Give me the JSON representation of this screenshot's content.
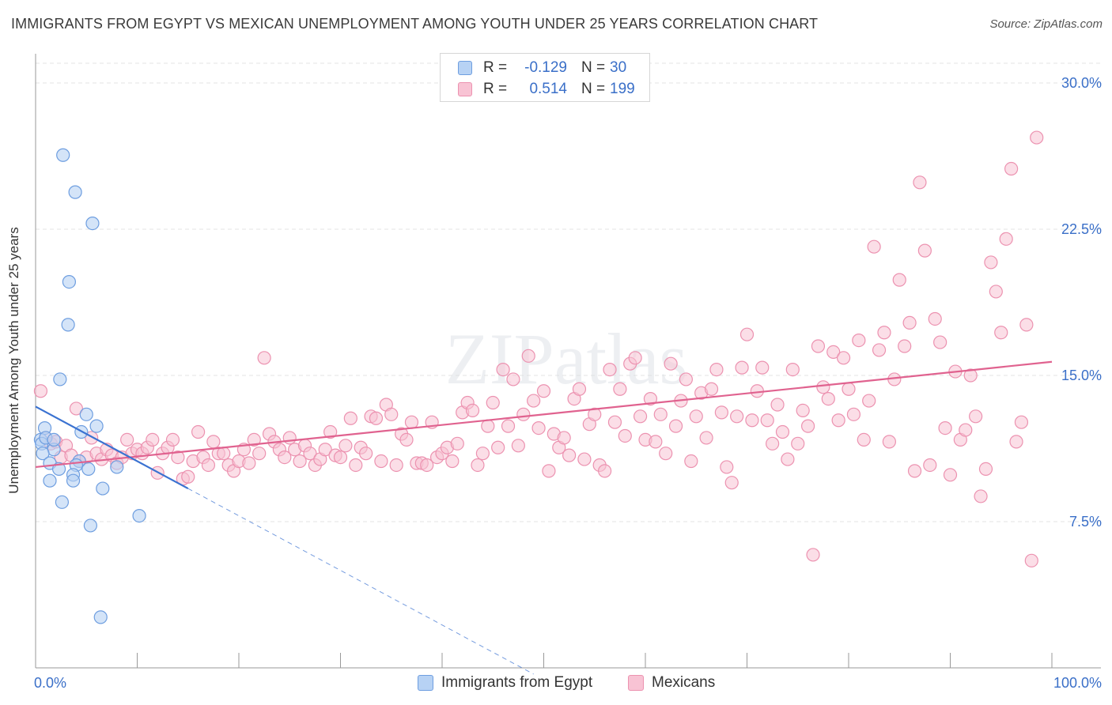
{
  "title": "IMMIGRANTS FROM EGYPT VS MEXICAN UNEMPLOYMENT AMONG YOUTH UNDER 25 YEARS CORRELATION CHART",
  "source": "Source: ZipAtlas.com",
  "watermark": "ZIPatlas",
  "colors": {
    "egypt_fill": "#b7d2f4",
    "egypt_stroke": "#6e9ee0",
    "egypt_line": "#3a72d1",
    "mex_fill": "#f8c3d4",
    "mex_stroke": "#ec92b0",
    "mex_line": "#e0628f",
    "tick_text": "#3a6fc8",
    "grid": "#e3e3e3"
  },
  "legend": {
    "rows": [
      {
        "series": "egypt",
        "r_label": "R =",
        "r_value": "-0.129",
        "n_label": "N =",
        "n_value": "30"
      },
      {
        "series": "mexicans",
        "r_label": "R =",
        "r_value": "0.514",
        "n_label": "N =",
        "n_value": "199"
      }
    ]
  },
  "chart_data": {
    "type": "scatter",
    "title": "IMMIGRANTS FROM EGYPT VS MEXICAN UNEMPLOYMENT AMONG YOUTH UNDER 25 YEARS CORRELATION CHART",
    "xlabel": "",
    "ylabel": "Unemployment Among Youth under 25 years",
    "xlim": [
      0,
      100
    ],
    "ylim": [
      0,
      31.5
    ],
    "x_tick_labels": [
      "0.0%",
      "100.0%"
    ],
    "y_ticks": [
      7.5,
      15.0,
      22.5,
      30.0
    ],
    "y_tick_labels": [
      "7.5%",
      "15.0%",
      "22.5%",
      "30.0%"
    ],
    "series": [
      {
        "name": "Immigrants from Egypt",
        "key": "egypt",
        "R": -0.129,
        "N": 30,
        "trend": {
          "x0": 0,
          "y0": 13.4,
          "x1": 15,
          "y1": 9.2,
          "dash_to_x": 49
        },
        "points": [
          [
            2.7,
            26.3
          ],
          [
            3.9,
            24.4
          ],
          [
            5.6,
            22.8
          ],
          [
            3.3,
            19.8
          ],
          [
            3.2,
            17.6
          ],
          [
            2.4,
            14.8
          ],
          [
            5.0,
            13.0
          ],
          [
            6.0,
            12.4
          ],
          [
            0.9,
            12.3
          ],
          [
            4.5,
            12.1
          ],
          [
            0.5,
            11.7
          ],
          [
            0.6,
            11.5
          ],
          [
            1.8,
            11.2
          ],
          [
            0.7,
            11.0
          ],
          [
            4.3,
            10.6
          ],
          [
            1.4,
            10.5
          ],
          [
            2.3,
            10.2
          ],
          [
            4.0,
            10.4
          ],
          [
            5.2,
            10.2
          ],
          [
            8.0,
            10.3
          ],
          [
            3.7,
            9.9
          ],
          [
            1.4,
            9.6
          ],
          [
            3.7,
            9.6
          ],
          [
            6.6,
            9.2
          ],
          [
            2.6,
            8.5
          ],
          [
            5.4,
            7.3
          ],
          [
            10.2,
            7.8
          ],
          [
            6.4,
            2.6
          ],
          [
            1.0,
            11.8
          ],
          [
            1.8,
            11.7
          ]
        ]
      },
      {
        "name": "Mexicans",
        "key": "mexicans",
        "R": 0.514,
        "N": 199,
        "trend": {
          "x0": 0,
          "y0": 10.3,
          "x1": 100,
          "y1": 15.7
        },
        "points": [
          [
            0.5,
            14.2
          ],
          [
            1.0,
            11.8
          ],
          [
            1.5,
            11.5
          ],
          [
            2.0,
            11.6
          ],
          [
            2.5,
            10.8
          ],
          [
            3.0,
            11.4
          ],
          [
            3.5,
            10.9
          ],
          [
            4.0,
            13.3
          ],
          [
            4.3,
            10.6
          ],
          [
            5.0,
            10.8
          ],
          [
            5.5,
            11.8
          ],
          [
            6.0,
            11.0
          ],
          [
            6.5,
            10.7
          ],
          [
            7.0,
            11.2
          ],
          [
            7.5,
            10.9
          ],
          [
            8.0,
            10.5
          ],
          [
            8.5,
            10.8
          ],
          [
            9.0,
            11.7
          ],
          [
            9.5,
            11.0
          ],
          [
            10.0,
            11.2
          ],
          [
            10.5,
            11.0
          ],
          [
            11.0,
            11.3
          ],
          [
            11.5,
            11.7
          ],
          [
            12.0,
            10.0
          ],
          [
            12.5,
            11.0
          ],
          [
            13.0,
            11.3
          ],
          [
            13.5,
            11.7
          ],
          [
            14.0,
            10.8
          ],
          [
            14.5,
            9.7
          ],
          [
            15.0,
            9.8
          ],
          [
            15.5,
            10.6
          ],
          [
            16.0,
            12.1
          ],
          [
            16.5,
            10.8
          ],
          [
            17.0,
            10.4
          ],
          [
            17.5,
            11.6
          ],
          [
            18.0,
            11.0
          ],
          [
            18.5,
            11.0
          ],
          [
            19.0,
            10.4
          ],
          [
            19.5,
            10.1
          ],
          [
            20.0,
            10.6
          ],
          [
            20.5,
            11.2
          ],
          [
            21.0,
            10.5
          ],
          [
            21.5,
            11.7
          ],
          [
            22.0,
            11.0
          ],
          [
            22.5,
            15.9
          ],
          [
            23.0,
            12.0
          ],
          [
            23.5,
            11.6
          ],
          [
            24.0,
            11.2
          ],
          [
            24.5,
            10.8
          ],
          [
            25.0,
            11.8
          ],
          [
            25.5,
            11.2
          ],
          [
            26.0,
            10.6
          ],
          [
            26.5,
            11.4
          ],
          [
            27.0,
            11.0
          ],
          [
            27.5,
            10.4
          ],
          [
            28.0,
            10.7
          ],
          [
            28.5,
            11.2
          ],
          [
            29.0,
            12.1
          ],
          [
            29.5,
            10.9
          ],
          [
            30.0,
            10.8
          ],
          [
            30.5,
            11.4
          ],
          [
            31.0,
            12.8
          ],
          [
            31.5,
            10.4
          ],
          [
            32.0,
            11.3
          ],
          [
            32.5,
            11.0
          ],
          [
            33.0,
            12.9
          ],
          [
            33.5,
            12.8
          ],
          [
            34.0,
            10.6
          ],
          [
            34.5,
            13.5
          ],
          [
            35.0,
            13.0
          ],
          [
            35.5,
            10.4
          ],
          [
            36.0,
            12.0
          ],
          [
            36.5,
            11.7
          ],
          [
            37.0,
            12.6
          ],
          [
            37.5,
            10.5
          ],
          [
            38.0,
            10.5
          ],
          [
            38.5,
            10.4
          ],
          [
            39.0,
            12.6
          ],
          [
            39.5,
            10.8
          ],
          [
            40.0,
            11.0
          ],
          [
            40.5,
            11.3
          ],
          [
            41.0,
            10.6
          ],
          [
            41.5,
            11.5
          ],
          [
            42.0,
            13.1
          ],
          [
            42.5,
            13.6
          ],
          [
            43.0,
            13.2
          ],
          [
            43.5,
            10.4
          ],
          [
            44.0,
            11.0
          ],
          [
            44.5,
            12.4
          ],
          [
            45.0,
            13.6
          ],
          [
            45.5,
            11.3
          ],
          [
            46.0,
            15.3
          ],
          [
            46.5,
            12.4
          ],
          [
            47.0,
            14.8
          ],
          [
            47.5,
            11.4
          ],
          [
            48.0,
            13.0
          ],
          [
            48.5,
            16.0
          ],
          [
            49.0,
            13.7
          ],
          [
            49.5,
            12.3
          ],
          [
            50.0,
            14.2
          ],
          [
            50.5,
            10.1
          ],
          [
            51.0,
            12.0
          ],
          [
            51.5,
            11.3
          ],
          [
            52.0,
            11.8
          ],
          [
            52.5,
            10.9
          ],
          [
            53.0,
            13.8
          ],
          [
            53.5,
            14.3
          ],
          [
            54.0,
            10.7
          ],
          [
            54.5,
            12.5
          ],
          [
            55.0,
            13.0
          ],
          [
            55.5,
            10.4
          ],
          [
            56.0,
            10.1
          ],
          [
            56.5,
            15.3
          ],
          [
            57.0,
            12.6
          ],
          [
            57.5,
            14.3
          ],
          [
            58.0,
            11.9
          ],
          [
            58.5,
            15.6
          ],
          [
            59.0,
            15.9
          ],
          [
            59.5,
            12.9
          ],
          [
            60.0,
            11.7
          ],
          [
            60.5,
            13.8
          ],
          [
            61.0,
            11.6
          ],
          [
            61.5,
            13.0
          ],
          [
            62.0,
            11.0
          ],
          [
            62.5,
            15.6
          ],
          [
            63.0,
            12.4
          ],
          [
            63.5,
            13.7
          ],
          [
            64.0,
            14.8
          ],
          [
            64.5,
            10.6
          ],
          [
            65.0,
            12.9
          ],
          [
            65.5,
            14.1
          ],
          [
            66.0,
            11.8
          ],
          [
            66.5,
            14.3
          ],
          [
            67.0,
            15.3
          ],
          [
            67.5,
            13.1
          ],
          [
            68.0,
            10.3
          ],
          [
            68.5,
            9.5
          ],
          [
            69.0,
            12.9
          ],
          [
            69.5,
            15.4
          ],
          [
            70.0,
            17.1
          ],
          [
            70.5,
            12.7
          ],
          [
            71.0,
            14.2
          ],
          [
            71.5,
            15.4
          ],
          [
            72.0,
            12.7
          ],
          [
            72.5,
            11.5
          ],
          [
            73.0,
            13.5
          ],
          [
            73.5,
            12.1
          ],
          [
            74.0,
            10.7
          ],
          [
            74.5,
            15.3
          ],
          [
            75.0,
            11.5
          ],
          [
            75.5,
            13.2
          ],
          [
            76.0,
            12.4
          ],
          [
            76.5,
            5.8
          ],
          [
            77.0,
            16.5
          ],
          [
            77.5,
            14.4
          ],
          [
            78.0,
            13.8
          ],
          [
            78.5,
            16.2
          ],
          [
            79.0,
            12.7
          ],
          [
            79.5,
            15.9
          ],
          [
            80.0,
            14.3
          ],
          [
            80.5,
            13.0
          ],
          [
            81.0,
            16.8
          ],
          [
            81.5,
            11.7
          ],
          [
            82.0,
            13.7
          ],
          [
            82.5,
            21.6
          ],
          [
            83.0,
            16.3
          ],
          [
            83.5,
            17.2
          ],
          [
            84.0,
            11.6
          ],
          [
            84.5,
            14.8
          ],
          [
            85.0,
            19.9
          ],
          [
            85.5,
            16.5
          ],
          [
            86.0,
            17.7
          ],
          [
            86.5,
            10.1
          ],
          [
            87.0,
            24.9
          ],
          [
            87.5,
            21.4
          ],
          [
            88.0,
            10.4
          ],
          [
            88.5,
            17.9
          ],
          [
            89.0,
            16.7
          ],
          [
            89.5,
            12.3
          ],
          [
            90.0,
            9.9
          ],
          [
            90.5,
            15.2
          ],
          [
            91.0,
            11.7
          ],
          [
            91.5,
            12.2
          ],
          [
            92.0,
            15.0
          ],
          [
            92.5,
            12.9
          ],
          [
            93.0,
            8.8
          ],
          [
            93.5,
            10.2
          ],
          [
            94.0,
            20.8
          ],
          [
            94.5,
            19.3
          ],
          [
            95.0,
            17.2
          ],
          [
            95.5,
            22.0
          ],
          [
            96.0,
            25.6
          ],
          [
            96.5,
            11.6
          ],
          [
            97.0,
            12.6
          ],
          [
            97.5,
            17.6
          ],
          [
            98.0,
            5.5
          ],
          [
            98.5,
            27.2
          ]
        ]
      }
    ]
  },
  "bottom_legend": [
    {
      "series": "egypt",
      "label": "Immigrants from Egypt"
    },
    {
      "series": "mexicans",
      "label": "Mexicans"
    }
  ]
}
